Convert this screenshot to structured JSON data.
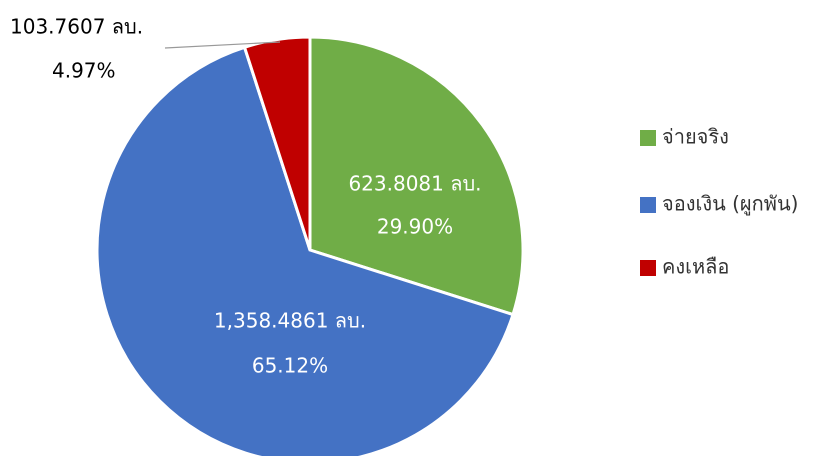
{
  "chart_data": {
    "type": "pie",
    "categories": [
      "จ่ายจริง",
      "จองเงิน (ผูกพัน)",
      "คงเหลือ"
    ],
    "values": [
      29.9,
      65.12,
      4.97
    ],
    "value_labels": [
      "29.90%",
      "65.12%",
      "4.97%"
    ],
    "amounts": [
      623.8081,
      1358.4861,
      103.7607
    ],
    "amount_labels": [
      "623.8081 ลบ.",
      "1,358.4861 ลบ.",
      "103.7607 ลบ."
    ],
    "colors": [
      "#70ad47",
      "#4472c4",
      "#c00000"
    ],
    "legend": "right"
  }
}
